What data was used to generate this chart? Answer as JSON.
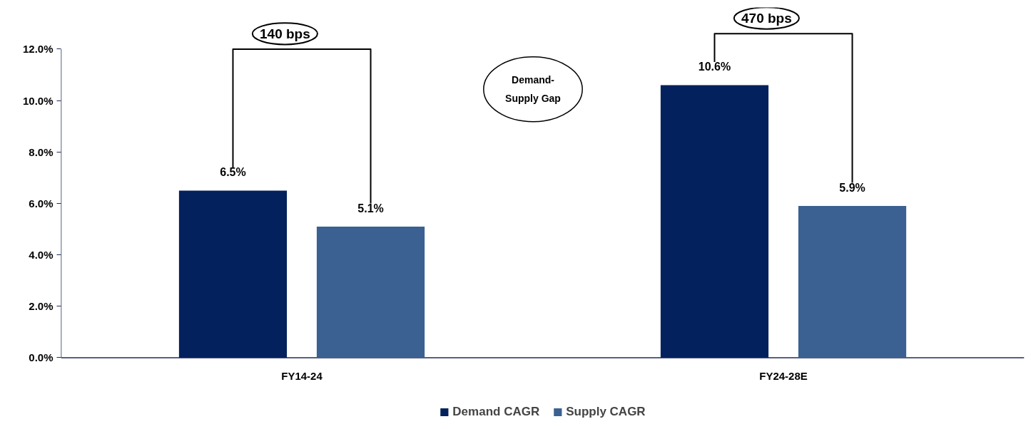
{
  "chart_data": {
    "type": "bar",
    "categories": [
      "FY14-24",
      "FY24-28E"
    ],
    "series": [
      {
        "name": "Demand CAGR",
        "color": "#03215c",
        "values": [
          6.5,
          10.6
        ],
        "value_labels": [
          "6.5%",
          "10.6%"
        ]
      },
      {
        "name": "Supply CAGR",
        "color": "#3a6191",
        "values": [
          5.1,
          5.9
        ],
        "value_labels": [
          "5.1%",
          "5.9%"
        ]
      }
    ],
    "ylim": [
      0,
      12
    ],
    "yticks": [
      {
        "value": 0,
        "label": "0.0%"
      },
      {
        "value": 2,
        "label": "2.0%"
      },
      {
        "value": 4,
        "label": "4.0%"
      },
      {
        "value": 6,
        "label": "6.0%"
      },
      {
        "value": 8,
        "label": "8.0%"
      },
      {
        "value": 10,
        "label": "10.0%"
      },
      {
        "value": 12,
        "label": "12.0%"
      }
    ],
    "grid": false,
    "legend": "bottom",
    "annotations": [
      "140 bps",
      "470 bps",
      "Demand-Supply Gap"
    ]
  }
}
